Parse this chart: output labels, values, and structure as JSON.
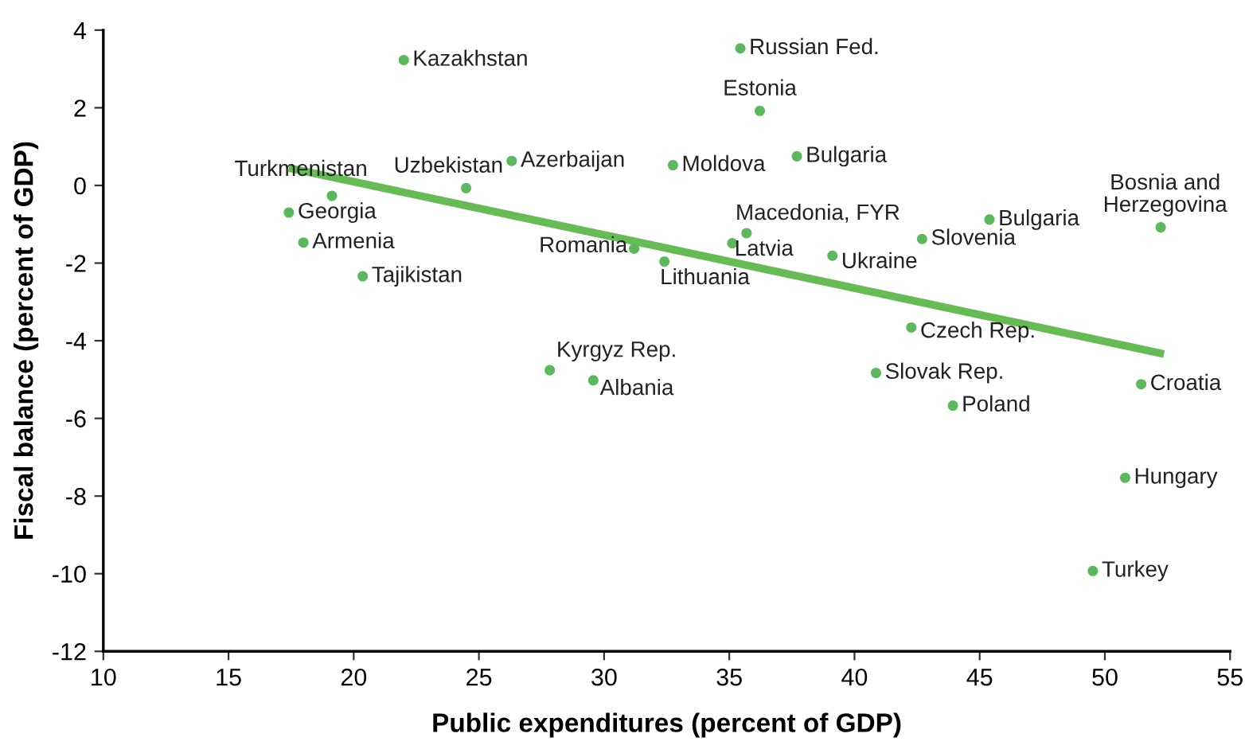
{
  "chart_data": {
    "type": "scatter",
    "xlabel": "Public expenditures (percent of GDP)",
    "ylabel": "Fiscal balance (percent of GDP)",
    "xlim": [
      10,
      55
    ],
    "xticks": [
      10,
      15,
      20,
      25,
      30,
      35,
      40,
      45,
      50,
      55
    ],
    "ylim": [
      -12,
      4
    ],
    "yticks": [
      -12,
      -10,
      -8,
      -6,
      -4,
      -2,
      0,
      2,
      4
    ],
    "grid": false,
    "legend": false,
    "series": [
      {
        "color": "#5cb85c",
        "marker": "circle",
        "x": [
          22.0,
          35.44,
          36.22,
          24.49,
          26.31,
          32.75,
          37.7,
          19.13,
          17.41,
          17.99,
          20.36,
          31.2,
          32.41,
          35.12,
          35.69,
          39.12,
          42.7,
          45.39,
          52.23,
          42.27,
          27.83,
          29.57,
          40.86,
          43.93,
          51.45,
          50.81,
          49.52
        ],
        "values": [
          3.23,
          3.53,
          1.92,
          -0.07,
          0.63,
          0.52,
          0.75,
          -0.27,
          -0.7,
          -1.47,
          -2.34,
          -1.63,
          -1.96,
          -1.49,
          -1.23,
          -1.81,
          -1.38,
          -0.88,
          -1.08,
          -3.66,
          -4.76,
          -5.02,
          -4.83,
          -5.67,
          -5.12,
          -7.53,
          -9.93
        ],
        "value_labels": [
          "Kazakhstan",
          "Russian Fed.",
          "Estonia",
          "Uzbekistan",
          "Azerbaijan",
          "Moldova",
          "Bulgaria",
          "Turkmenistan",
          "Georgia",
          "Armenia",
          "Tajikistan",
          "Romania",
          "Lithuania",
          "Latvia",
          "Macedonia, FYR",
          "Ukraine",
          "Slovenia",
          "Bulgaria",
          "Bosnia and\nHerzegovina",
          "Czech Rep.",
          "Kyrgyz Rep.",
          "Albania",
          "Slovak Rep.",
          "Poland",
          "Croatia",
          "Hungary",
          "Turkey"
        ]
      },
      {
        "type": "line",
        "color": "#66bb55",
        "x": [
          17.41,
          52.36
        ],
        "values": [
          0.45,
          -4.34
        ]
      }
    ]
  }
}
